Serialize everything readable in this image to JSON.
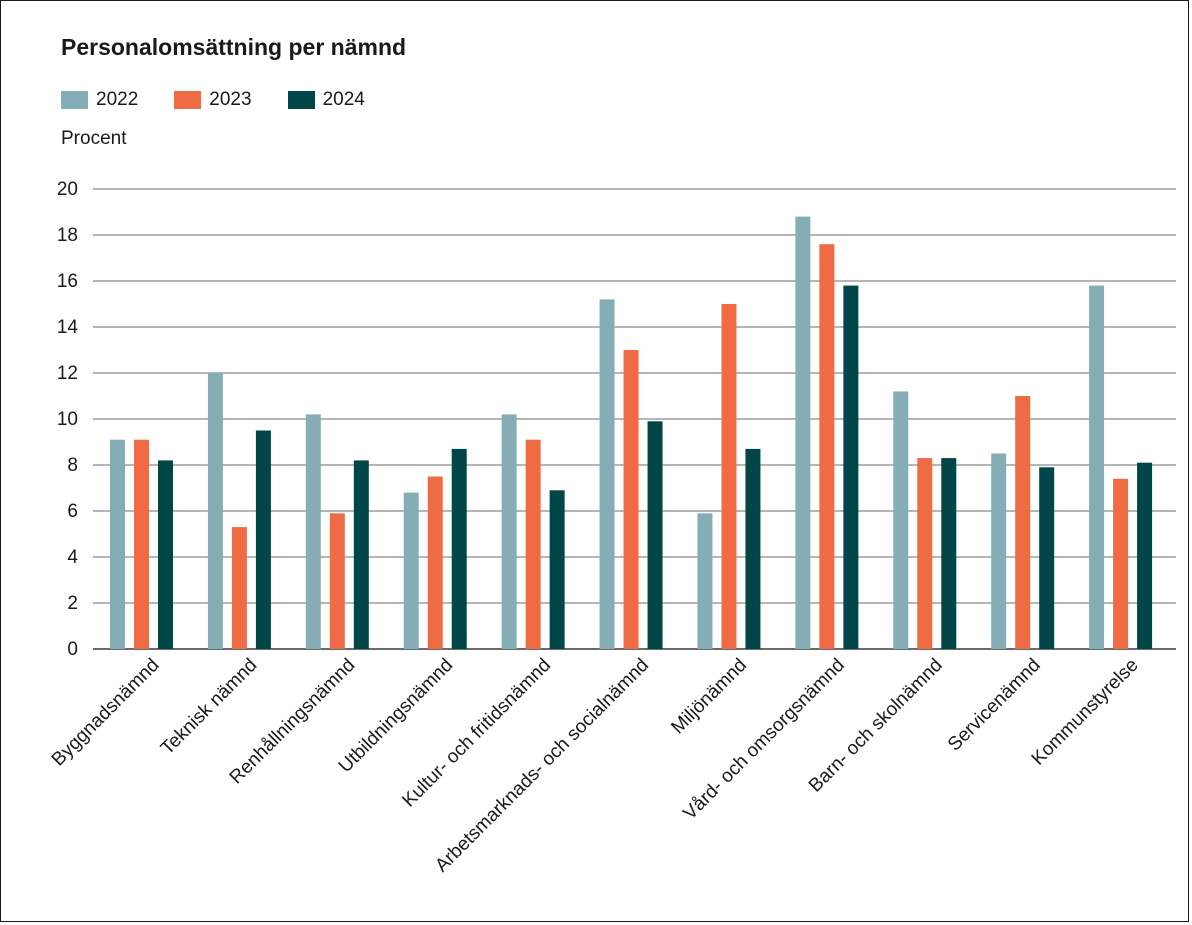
{
  "chart_data": {
    "type": "bar",
    "title": "Personalomsättning per nämnd",
    "ylabel": "Procent",
    "xlabel": "",
    "ylim": [
      0,
      20
    ],
    "yticks": [
      0,
      2,
      4,
      6,
      8,
      10,
      12,
      14,
      16,
      18,
      20
    ],
    "grid": true,
    "legend_position": "top-left",
    "categories": [
      "Byggnadsnämnd",
      "Teknisk nämnd",
      "Renhållningsnämnd",
      "Utbildningsnämnd",
      "Kultur- och fritidsnämnd",
      "Arbetsmarknads- och socialnämnd",
      "Miljönämnd",
      "Vård- och omsorgsnämnd",
      "Barn- och skolnämnd",
      "Servicenämnd",
      "Kommunstyrelse"
    ],
    "series": [
      {
        "name": "2022",
        "color": "#85adb5",
        "values": [
          9.1,
          12.0,
          10.2,
          6.8,
          10.2,
          15.2,
          5.9,
          18.8,
          11.2,
          8.5,
          15.8
        ]
      },
      {
        "name": "2023",
        "color": "#ee6b43",
        "values": [
          9.1,
          5.3,
          5.9,
          7.5,
          9.1,
          13.0,
          15.0,
          17.6,
          8.3,
          11.0,
          7.4
        ]
      },
      {
        "name": "2024",
        "color": "#004548",
        "values": [
          8.2,
          9.5,
          8.2,
          8.7,
          6.9,
          9.9,
          8.7,
          15.8,
          8.3,
          7.9,
          8.1
        ]
      }
    ]
  }
}
